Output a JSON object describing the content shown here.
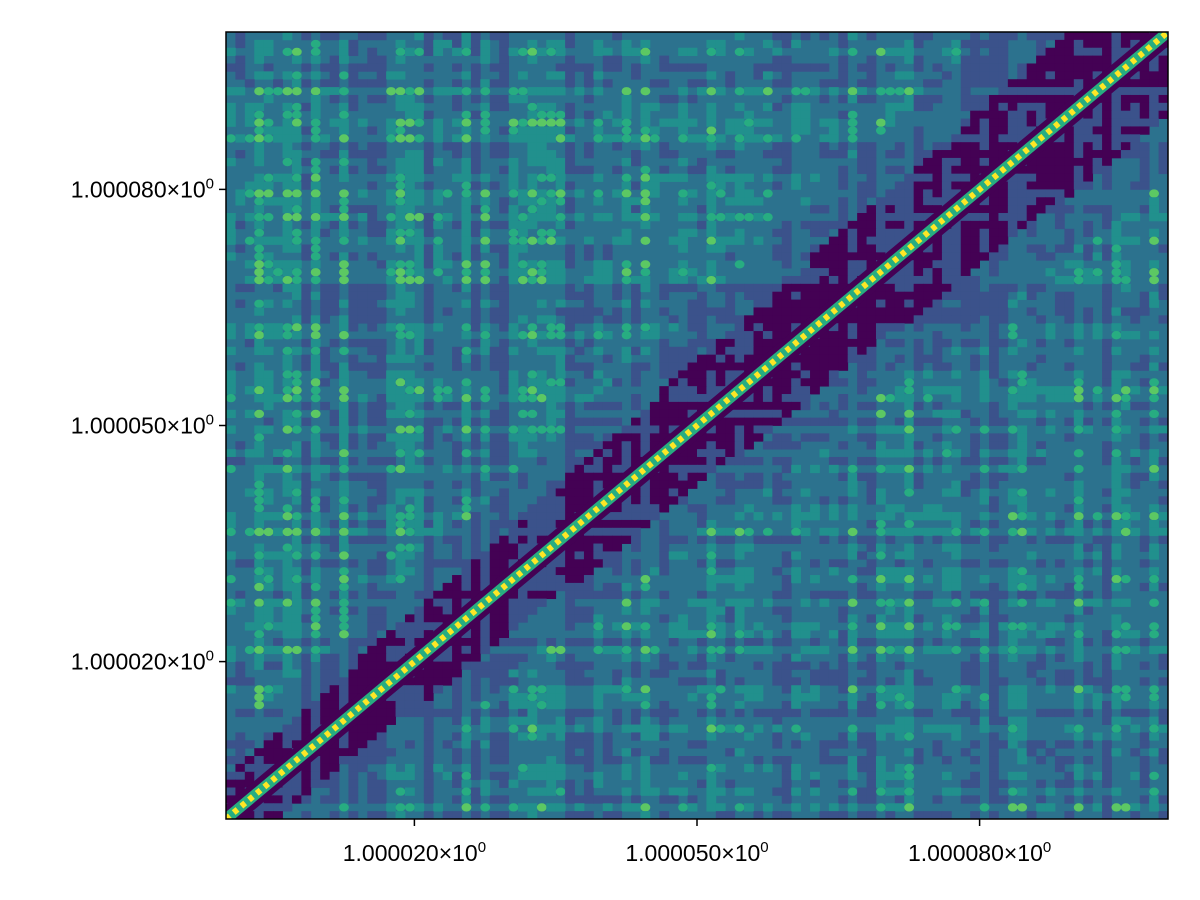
{
  "chart_data": {
    "type": "heatmap",
    "subtype": "filled-contour",
    "title": "",
    "xlabel": "",
    "ylabel": "",
    "x_range": [
      1.0,
      1.0001
    ],
    "y_range": [
      1.0,
      1.0001
    ],
    "x_ticks": [
      {
        "value": 1.00002,
        "mantissa": "1.000020",
        "times": "×10",
        "exp": "0"
      },
      {
        "value": 1.00005,
        "mantissa": "1.000050",
        "times": "×10",
        "exp": "0"
      },
      {
        "value": 1.00008,
        "mantissa": "1.000080",
        "times": "×10",
        "exp": "0"
      }
    ],
    "y_ticks": [
      {
        "value": 1.00002,
        "mantissa": "1.000020",
        "times": "×10",
        "exp": "0"
      },
      {
        "value": 1.00005,
        "mantissa": "1.000050",
        "times": "×10",
        "exp": "0"
      },
      {
        "value": 1.00008,
        "mantissa": "1.000080",
        "times": "×10",
        "exp": "0"
      }
    ],
    "grid": false,
    "legend": "none",
    "colormap": "viridis",
    "colors": {
      "levels": [
        "#440154",
        "#3b528b",
        "#2c728e",
        "#21908d",
        "#27ad81",
        "#5cc863",
        "#aadc32",
        "#fde725"
      ],
      "dominant": "#2c728e",
      "diagonal": "#fde725"
    },
    "pattern": "bright diagonal band where x equals y, surrounded by a dark purple halo that widens toward the upper right; the rest is a mottled teal/green grid of small contour cells"
  }
}
